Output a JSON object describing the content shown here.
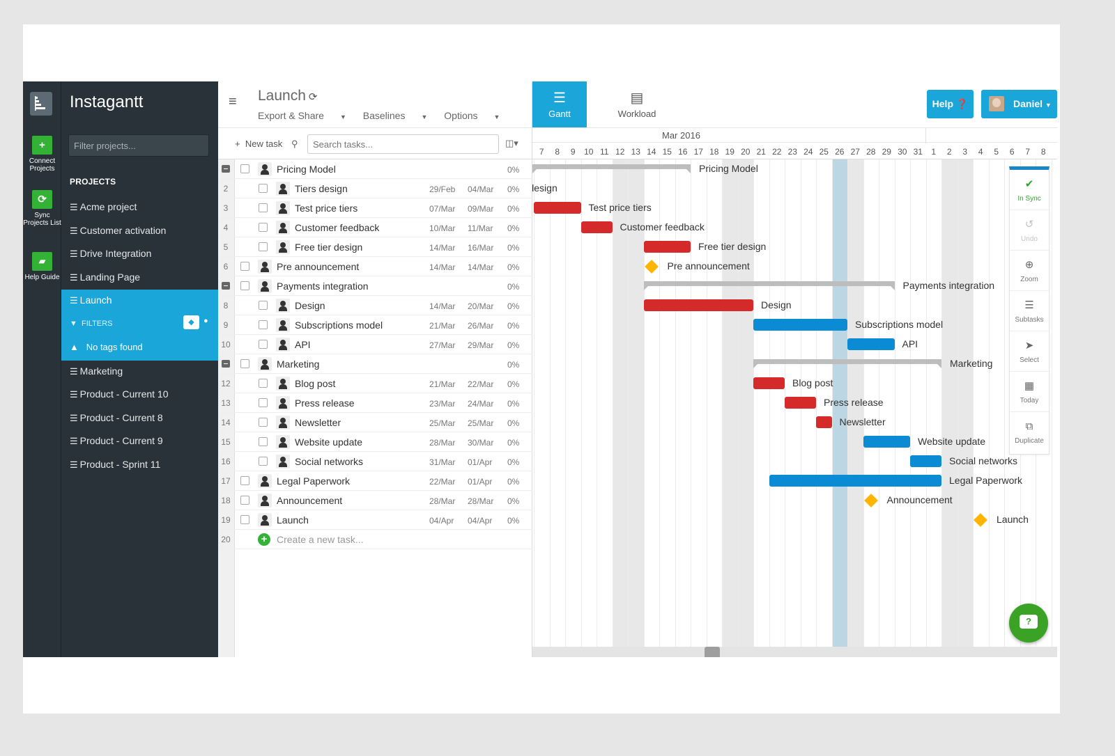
{
  "rail": {
    "connect": "Connect Projects",
    "sync": "Sync Projects List",
    "help": "Help Guide"
  },
  "sidebar": {
    "brand": "Instagantt",
    "filter_placeholder": "Filter projects...",
    "projects_header": "PROJECTS",
    "projects": [
      {
        "label": "Acme project"
      },
      {
        "label": "Customer activation"
      },
      {
        "label": "Drive Integration"
      },
      {
        "label": "Landing Page"
      },
      {
        "label": "Launch",
        "active": true
      },
      {
        "label": "Marketing"
      },
      {
        "label": "Product - Current 10"
      },
      {
        "label": "Product - Current 8"
      },
      {
        "label": "Product - Current 9"
      },
      {
        "label": "Product - Sprint 11"
      }
    ],
    "filters_label": "FILTERS",
    "no_tags": "No tags found"
  },
  "project": {
    "title": "Launch",
    "menus": [
      "Export & Share",
      "Baselines",
      "Options"
    ],
    "new_task": "New task",
    "search_placeholder": "Search tasks..."
  },
  "tasks": [
    {
      "n": "",
      "name": "Pricing Model",
      "start": "",
      "end": "",
      "pct": "0%",
      "level": 0,
      "group": true
    },
    {
      "n": "2",
      "name": "Tiers design",
      "start": "29/Feb",
      "end": "04/Mar",
      "pct": "0%",
      "level": 1
    },
    {
      "n": "3",
      "name": "Test price tiers",
      "start": "07/Mar",
      "end": "09/Mar",
      "pct": "0%",
      "level": 1
    },
    {
      "n": "4",
      "name": "Customer feedback",
      "start": "10/Mar",
      "end": "11/Mar",
      "pct": "0%",
      "level": 1
    },
    {
      "n": "5",
      "name": "Free tier design",
      "start": "14/Mar",
      "end": "16/Mar",
      "pct": "0%",
      "level": 1
    },
    {
      "n": "6",
      "name": "Pre announcement",
      "start": "14/Mar",
      "end": "14/Mar",
      "pct": "0%",
      "level": 0
    },
    {
      "n": "",
      "name": "Payments integration",
      "start": "",
      "end": "",
      "pct": "0%",
      "level": 0,
      "group": true
    },
    {
      "n": "8",
      "name": "Design",
      "start": "14/Mar",
      "end": "20/Mar",
      "pct": "0%",
      "level": 1
    },
    {
      "n": "9",
      "name": "Subscriptions model",
      "start": "21/Mar",
      "end": "26/Mar",
      "pct": "0%",
      "level": 1
    },
    {
      "n": "10",
      "name": "API",
      "start": "27/Mar",
      "end": "29/Mar",
      "pct": "0%",
      "level": 1
    },
    {
      "n": "",
      "name": "Marketing",
      "start": "",
      "end": "",
      "pct": "0%",
      "level": 0,
      "group": true
    },
    {
      "n": "12",
      "name": "Blog post",
      "start": "21/Mar",
      "end": "22/Mar",
      "pct": "0%",
      "level": 1
    },
    {
      "n": "13",
      "name": "Press release",
      "start": "23/Mar",
      "end": "24/Mar",
      "pct": "0%",
      "level": 1
    },
    {
      "n": "14",
      "name": "Newsletter",
      "start": "25/Mar",
      "end": "25/Mar",
      "pct": "0%",
      "level": 1
    },
    {
      "n": "15",
      "name": "Website update",
      "start": "28/Mar",
      "end": "30/Mar",
      "pct": "0%",
      "level": 1
    },
    {
      "n": "16",
      "name": "Social networks",
      "start": "31/Mar",
      "end": "01/Apr",
      "pct": "0%",
      "level": 1
    },
    {
      "n": "17",
      "name": "Legal Paperwork",
      "start": "22/Mar",
      "end": "01/Apr",
      "pct": "0%",
      "level": 0
    },
    {
      "n": "18",
      "name": "Announcement",
      "start": "28/Mar",
      "end": "28/Mar",
      "pct": "0%",
      "level": 0
    },
    {
      "n": "19",
      "name": "Launch",
      "start": "04/Apr",
      "end": "04/Apr",
      "pct": "0%",
      "level": 0
    }
  ],
  "create_row": {
    "n": "20",
    "label": "Create a new task..."
  },
  "gantt": {
    "tabs": [
      {
        "label": "Gantt",
        "active": true
      },
      {
        "label": "Workload"
      }
    ],
    "help": "Help",
    "user": "Daniel",
    "month": "Mar 2016",
    "days": [
      "7",
      "8",
      "9",
      "10",
      "11",
      "12",
      "13",
      "14",
      "15",
      "16",
      "17",
      "18",
      "19",
      "20",
      "21",
      "22",
      "23",
      "24",
      "25",
      "26",
      "27",
      "28",
      "29",
      "30",
      "31",
      "1",
      "2",
      "3",
      "4",
      "5",
      "6",
      "7",
      "8"
    ],
    "colors": {
      "red": "#d42a2a",
      "blue": "#0a8bd3",
      "milestone": "#ffb400",
      "group": "#bdbdbd",
      "today": "#bcd6e3",
      "accent": "#1aa6d9"
    },
    "tools": [
      {
        "icon": "check-circle-icon",
        "label": "In Sync"
      },
      {
        "icon": "undo-icon",
        "label": "Undo"
      },
      {
        "icon": "zoom-in-icon",
        "label": "Zoom"
      },
      {
        "icon": "list-icon",
        "label": "Subtasks"
      },
      {
        "icon": "cursor-icon",
        "label": "Select"
      },
      {
        "icon": "calendar-icon",
        "label": "Today"
      },
      {
        "icon": "duplicate-icon",
        "label": "Duplicate"
      }
    ]
  }
}
